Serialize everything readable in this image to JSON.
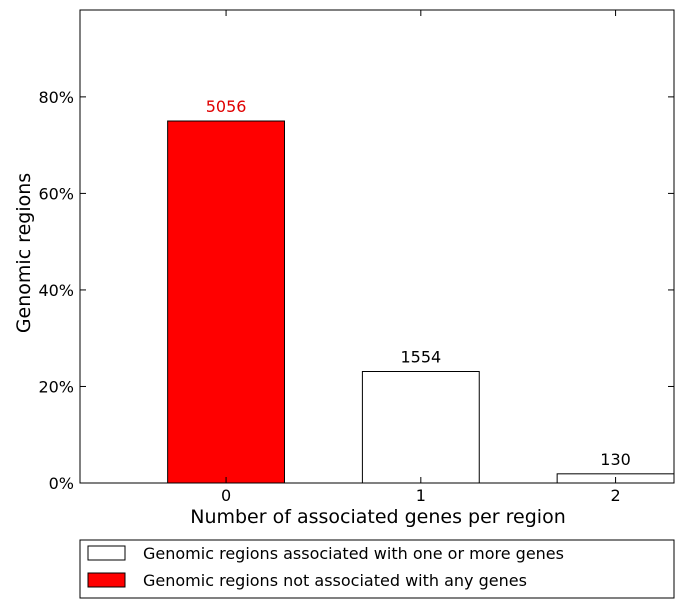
{
  "chart_data": {
    "type": "bar",
    "categories": [
      "0",
      "1",
      "2"
    ],
    "series": [
      {
        "values": [
          75.0,
          23.1,
          1.9
        ],
        "counts": [
          "5056",
          "1554",
          "130"
        ],
        "colors": [
          "#ff0000",
          "#ffffff",
          "#ffffff"
        ],
        "label_colors": [
          "#e00000",
          "#000000",
          "#000000"
        ]
      }
    ],
    "title": "",
    "xlabel": "Number of associated genes per region",
    "ylabel": "Genomic regions",
    "ylim": [
      0,
      98
    ],
    "xlim": [
      -0.75,
      2.3
    ],
    "yticks": [
      0,
      20,
      40,
      60,
      80
    ],
    "ytick_labels": [
      "0%",
      "20%",
      "40%",
      "60%",
      "80%"
    ],
    "xticks": [
      0,
      1,
      2
    ],
    "xtick_labels": [
      "0",
      "1",
      "2"
    ],
    "grid": false,
    "legend": {
      "placement": "bottom",
      "entries": [
        {
          "label": "Genomic regions associated with one or more genes",
          "color": "#ffffff"
        },
        {
          "label": "Genomic regions not associated with any genes",
          "color": "#ff0000"
        }
      ]
    }
  }
}
